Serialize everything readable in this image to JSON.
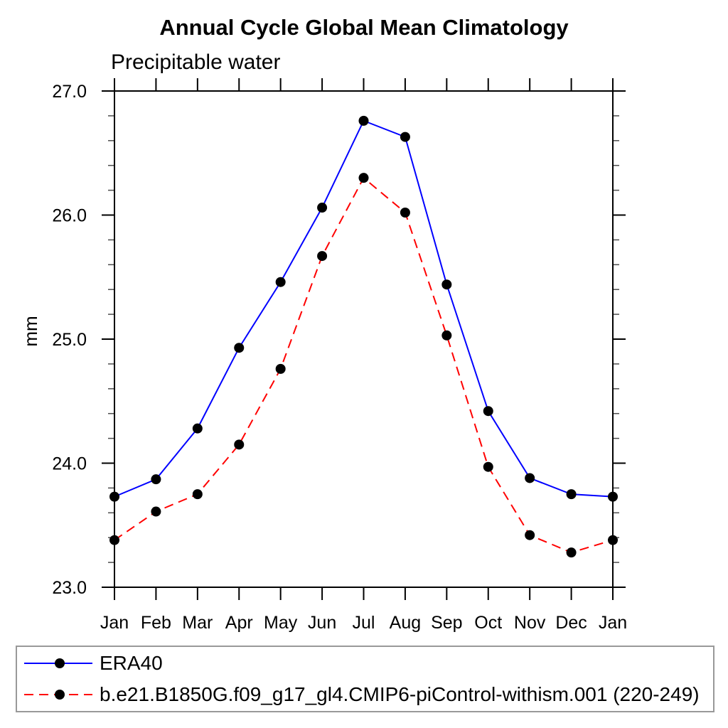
{
  "header": {
    "title": "Annual Cycle Global Mean Climatology",
    "subtitle": "Precipitable water"
  },
  "chart_data": {
    "type": "line",
    "title": "Annual Cycle Global Mean Climatology",
    "subtitle": "Precipitable water",
    "xlabel": "",
    "ylabel": "mm",
    "categories": [
      "Jan",
      "Feb",
      "Mar",
      "Apr",
      "May",
      "Jun",
      "Jul",
      "Aug",
      "Sep",
      "Oct",
      "Nov",
      "Dec",
      "Jan"
    ],
    "ylim": [
      23.0,
      27.0
    ],
    "ytick_major_interval": 1.0,
    "ytick_minor_interval": 0.2,
    "ytick_labels": [
      "23.0",
      "24.0",
      "25.0",
      "26.0",
      "27.0"
    ],
    "grid": false,
    "legend_position": "bottom-left-box",
    "axis_color": "#000000",
    "marker": "filled-circle",
    "marker_color": "#000000",
    "series": [
      {
        "name": "ERA40",
        "color": "#0000ff",
        "line_style": "solid",
        "values": [
          23.73,
          23.87,
          24.28,
          24.93,
          25.46,
          26.06,
          26.76,
          26.63,
          25.44,
          24.42,
          23.88,
          23.75,
          23.73
        ]
      },
      {
        "name": "b.e21.B1850G.f09_g17_gl4.CMIP6-piControl-withism.001 (220-249)",
        "color": "#ff0000",
        "line_style": "dashed",
        "values": [
          23.38,
          23.61,
          23.75,
          24.15,
          24.76,
          25.67,
          26.3,
          26.02,
          25.03,
          23.97,
          23.42,
          23.28,
          23.38
        ]
      }
    ]
  }
}
